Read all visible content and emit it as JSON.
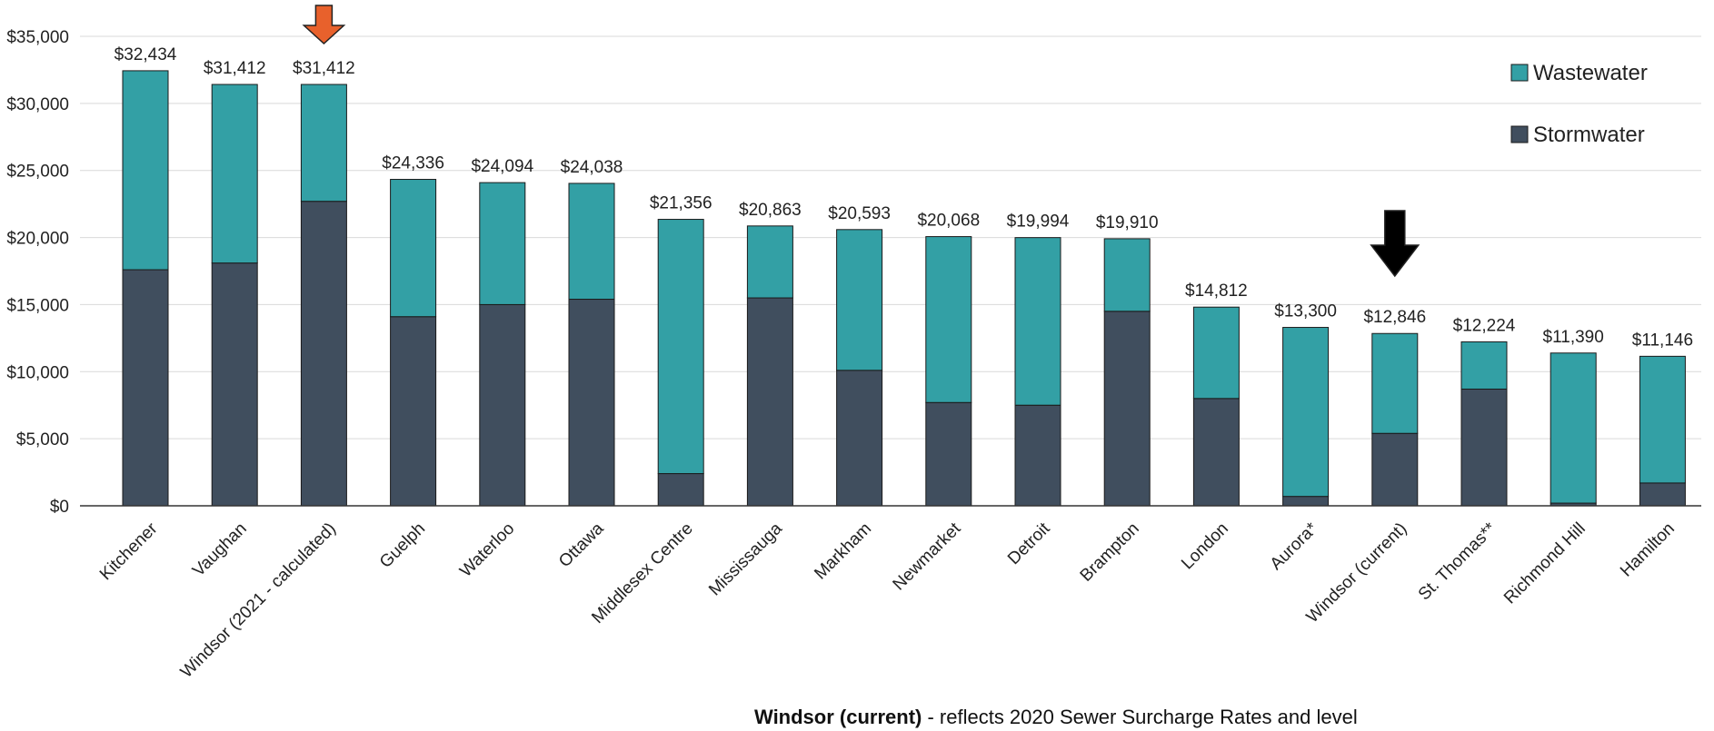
{
  "chart_data": {
    "type": "bar",
    "stacked": true,
    "categories": [
      "Kitchener",
      "Vaughan",
      "Windsor (2021 - calculated)",
      "Guelph",
      "Waterloo",
      "Ottawa",
      "Middlesex Centre",
      "Mississauga",
      "Markham",
      "Newmarket",
      "Detroit",
      "Brampton",
      "London",
      "Aurora*",
      "Windsor (current)",
      "St. Thomas**",
      "Richmond Hill",
      "Hamilton"
    ],
    "series": [
      {
        "name": "Stormwater",
        "color": "#404e5e",
        "values": [
          17600,
          18100,
          22700,
          14100,
          15000,
          15400,
          2400,
          15500,
          10100,
          7700,
          7500,
          14500,
          8000,
          700,
          5400,
          8700,
          200,
          1700
        ]
      },
      {
        "name": "Wastewater",
        "color": "#33a0a5",
        "values": [
          14834,
          13312,
          8712,
          10236,
          9094,
          8638,
          18956,
          5363,
          10493,
          12368,
          12494,
          5410,
          6812,
          12600,
          7446,
          3524,
          11190,
          9446
        ]
      }
    ],
    "totals": [
      "$32,434",
      "$31,412",
      "$31,412",
      "$24,336",
      "$24,094",
      "$24,038",
      "$21,356",
      "$20,863",
      "$20,593",
      "$20,068",
      "$19,994",
      "$19,910",
      "$14,812",
      "$13,300",
      "$12,846",
      "$12,224",
      "$11,390",
      "$11,146"
    ],
    "y_ticks": [
      "$0",
      "$5,000",
      "$10,000",
      "$15,000",
      "$20,000",
      "$25,000",
      "$30,000",
      "$35,000"
    ],
    "ylim": [
      0,
      35000
    ],
    "title": "",
    "xlabel": "",
    "ylabel": "",
    "grid": true,
    "legend_position": "top-right",
    "legend": [
      {
        "name": "Wastewater",
        "color": "#33a0a5"
      },
      {
        "name": "Stormwater",
        "color": "#404e5e"
      }
    ],
    "highlight_arrows": [
      {
        "category": "Windsor (2021 - calculated)",
        "color": "#e8612c"
      },
      {
        "category": "Windsor (current)",
        "color": "#000000"
      }
    ]
  },
  "footnote": {
    "bold": "Windsor (current)",
    "text": " - reflects 2020 Sewer Surcharge Rates and level"
  }
}
